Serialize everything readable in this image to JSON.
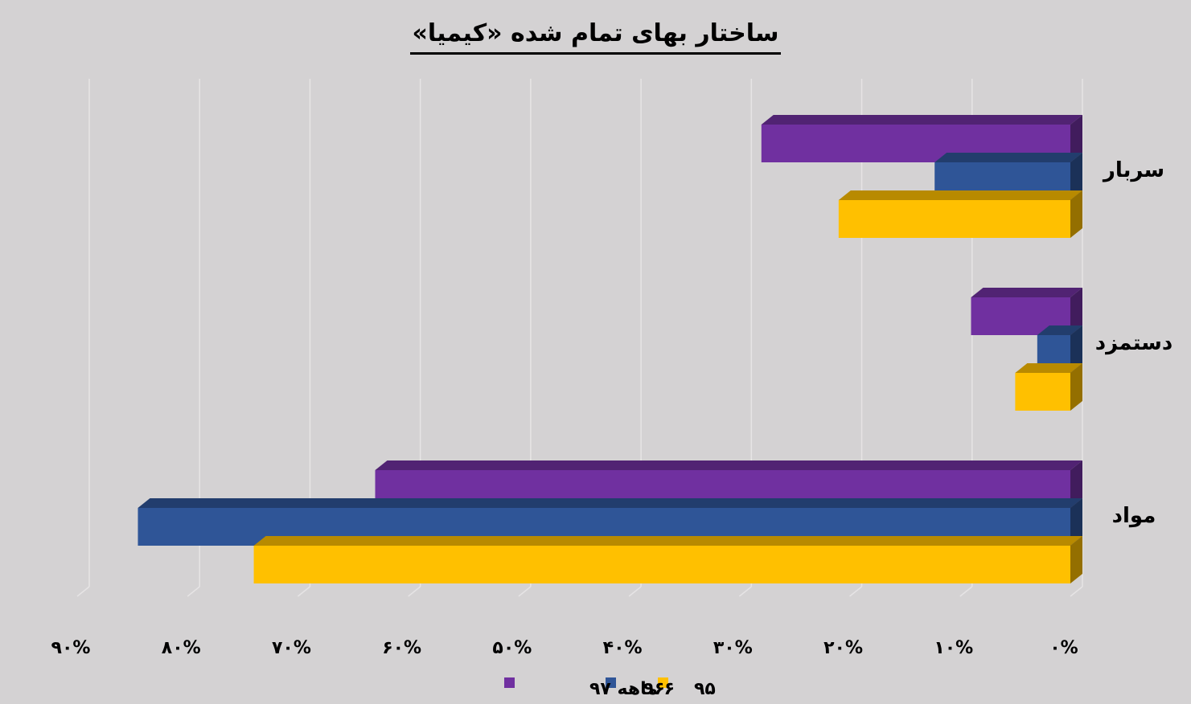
{
  "chart_data": {
    "type": "bar",
    "orientation": "horizontal",
    "x_reversed": true,
    "title": "ساختار بهای تمام شده «کیمیا»",
    "categories": [
      "سربار",
      "دستمزد",
      "مواد"
    ],
    "series": [
      {
        "name": "۶ ماهه ۹۷",
        "color": "#7030a0",
        "values": [
          28,
          9,
          63
        ]
      },
      {
        "name": "۹۶",
        "color": "#2f5597",
        "values": [
          12.3,
          3,
          84.5
        ]
      },
      {
        "name": "۹۵",
        "color": "#ffc000",
        "values": [
          21,
          5,
          74
        ]
      }
    ],
    "xlim": [
      0,
      90
    ],
    "xticks": [
      "۰%",
      "۱۰%",
      "۲۰%",
      "۳۰%",
      "۴۰%",
      "۵۰%",
      "۶۰%",
      "۷۰%",
      "۸۰%",
      "۹۰%"
    ],
    "grid": true,
    "legend_position": "bottom",
    "style": "3d"
  }
}
